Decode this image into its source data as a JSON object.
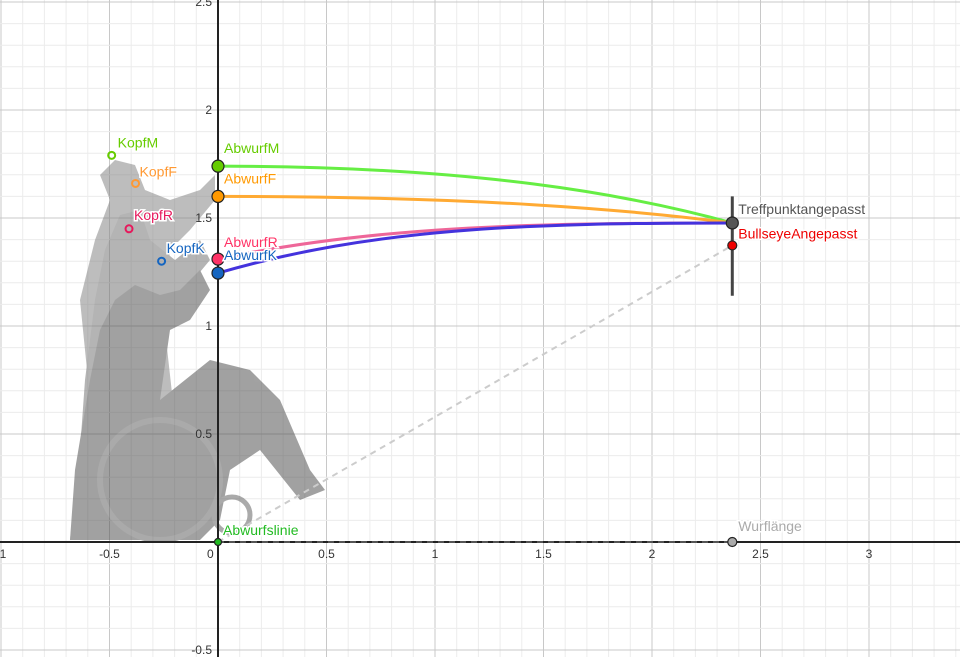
{
  "chart_data": {
    "type": "scatter",
    "title": "",
    "xlabel": "",
    "ylabel": "",
    "xlim": [
      -1,
      3.4
    ],
    "ylim": [
      -0.5,
      2.5
    ],
    "grid": true,
    "x_ticks": [
      "-1",
      "-0.5",
      "0",
      "0.5",
      "1",
      "1.5",
      "2",
      "2.5",
      "3"
    ],
    "y_ticks": [
      "-0.5",
      "0.5",
      "1",
      "1.5",
      "2",
      "2.5"
    ],
    "points": [
      {
        "name": "KopfM",
        "x": -0.49,
        "y": 1.79,
        "color": "#66cc00",
        "hollow": true
      },
      {
        "name": "KopfF",
        "x": -0.38,
        "y": 1.66,
        "color": "#ff9933",
        "hollow": true
      },
      {
        "name": "KopfR",
        "x": -0.41,
        "y": 1.45,
        "color": "#e6195c",
        "hollow": true
      },
      {
        "name": "KopfK",
        "x": -0.26,
        "y": 1.3,
        "color": "#1565c0",
        "hollow": true
      },
      {
        "name": "AbwurfM",
        "x": 0,
        "y": 1.74,
        "color": "#66cc00"
      },
      {
        "name": "AbwurfF",
        "x": 0,
        "y": 1.6,
        "color": "#ff9900"
      },
      {
        "name": "AbwurfR",
        "x": 0,
        "y": 1.31,
        "color": "#ff3366"
      },
      {
        "name": "AbwurfK",
        "x": 0,
        "y": 1.245,
        "color": "#1565c0"
      },
      {
        "name": "Treffpunktangepasst",
        "x": 2.37,
        "y": 1.477,
        "color": "#555555"
      },
      {
        "name": "BullseyeAngepasst",
        "x": 2.37,
        "y": 1.373,
        "color": "#ee0000"
      },
      {
        "name": "Abwurfslinie",
        "x": 0,
        "y": 0,
        "color": "#22bb22"
      },
      {
        "name": "Wurflänge",
        "x": 2.37,
        "y": 0,
        "color": "#aaaaaa"
      }
    ],
    "trajectories": [
      {
        "from": "AbwurfM",
        "to": "Treffpunktangepasst",
        "color": "#66ee44"
      },
      {
        "from": "AbwurfF",
        "to": "Treffpunktangepasst",
        "color": "#ffaa33"
      },
      {
        "from": "AbwurfR",
        "to": "Treffpunktangepasst",
        "color": "#ee6699"
      },
      {
        "from": "AbwurfK",
        "to": "Treffpunktangepasst",
        "color": "#4433dd"
      }
    ],
    "dartboard_segment": {
      "x": 2.37,
      "y_from": 1.14,
      "y_to": 1.6,
      "color": "#444444"
    },
    "dashed_lines": [
      {
        "from": [
          0,
          0
        ],
        "to": [
          2.37,
          1.373
        ],
        "color": "#cccccc"
      },
      {
        "from": [
          0,
          0
        ],
        "to": [
          2.37,
          0
        ],
        "color": "#555555"
      }
    ]
  }
}
